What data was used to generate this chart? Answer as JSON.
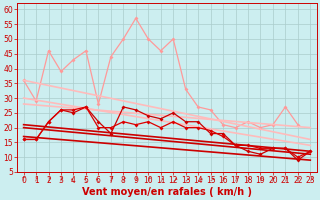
{
  "xlabel": "Vent moyen/en rafales ( km/h )",
  "bg_color": "#cceef0",
  "grid_color": "#aacccc",
  "ylim": [
    5,
    62
  ],
  "yticks": [
    5,
    10,
    15,
    20,
    25,
    30,
    35,
    40,
    45,
    50,
    55,
    60
  ],
  "ytick_labels": [
    "5",
    "10",
    "15",
    "20",
    "25",
    "30",
    "35",
    "40",
    "45",
    "50",
    "55",
    "60"
  ],
  "xlim": [
    -0.5,
    23.5
  ],
  "lines": [
    {
      "comment": "light pink marker line - jagged high values",
      "x": [
        0,
        1,
        2,
        3,
        4,
        5,
        6,
        7,
        8,
        9,
        10,
        11,
        12,
        13,
        14,
        15,
        16,
        17,
        18,
        19,
        20,
        21,
        22
      ],
      "y": [
        36,
        29,
        46,
        39,
        43,
        46,
        28,
        44,
        50,
        57,
        50,
        46,
        50,
        33,
        27,
        26,
        21,
        20,
        22,
        20,
        21,
        27,
        21
      ],
      "color": "#ff9999",
      "lw": 0.9,
      "marker": "D",
      "ms": 2.0,
      "zorder": 2
    },
    {
      "comment": "light pink straight trend line top - declining from ~36 to ~16",
      "x": [
        0,
        23
      ],
      "y": [
        36,
        16
      ],
      "color": "#ffbbbb",
      "lw": 1.2,
      "marker": null,
      "ms": 0,
      "zorder": 2
    },
    {
      "comment": "light pink straight trend line bottom - declining from ~30 to ~14",
      "x": [
        0,
        23
      ],
      "y": [
        30,
        14
      ],
      "color": "#ffbbbb",
      "lw": 1.2,
      "marker": null,
      "ms": 0,
      "zorder": 2
    },
    {
      "comment": "light pink straight trend line middle - declining from ~28 to ~20",
      "x": [
        0,
        23
      ],
      "y": [
        28,
        20
      ],
      "color": "#ffbbbb",
      "lw": 1.2,
      "marker": null,
      "ms": 0,
      "zorder": 2
    },
    {
      "comment": "dark red marker line 1 - with diamonds, jagged around 15-27",
      "x": [
        0,
        1,
        2,
        3,
        4,
        5,
        6,
        7,
        8,
        9,
        10,
        11,
        12,
        13,
        14,
        15,
        16,
        17,
        18,
        19,
        20,
        21,
        22,
        23
      ],
      "y": [
        16,
        16,
        22,
        26,
        25,
        27,
        22,
        18,
        27,
        26,
        24,
        23,
        25,
        22,
        22,
        18,
        18,
        14,
        12,
        11,
        13,
        13,
        9,
        12
      ],
      "color": "#cc0000",
      "lw": 0.9,
      "marker": "D",
      "ms": 2.0,
      "zorder": 3
    },
    {
      "comment": "dark red marker line 2 - slightly lower jagged",
      "x": [
        0,
        1,
        2,
        3,
        4,
        5,
        6,
        7,
        8,
        9,
        10,
        11,
        12,
        13,
        14,
        15,
        16,
        17,
        18,
        19,
        20,
        21,
        22,
        23
      ],
      "y": [
        16,
        16,
        22,
        26,
        26,
        27,
        20,
        20,
        22,
        21,
        22,
        20,
        22,
        20,
        20,
        19,
        17,
        14,
        14,
        13,
        13,
        13,
        10,
        12
      ],
      "color": "#dd0000",
      "lw": 0.9,
      "marker": "D",
      "ms": 2.0,
      "zorder": 3
    },
    {
      "comment": "dark red straight trend line top - declining from ~21 to ~12",
      "x": [
        0,
        23
      ],
      "y": [
        21,
        12
      ],
      "color": "#cc0000",
      "lw": 1.2,
      "marker": null,
      "ms": 0,
      "zorder": 3
    },
    {
      "comment": "dark red straight trend line middle - declining from ~20 to ~11",
      "x": [
        0,
        23
      ],
      "y": [
        20,
        11
      ],
      "color": "#cc0000",
      "lw": 1.2,
      "marker": null,
      "ms": 0,
      "zorder": 3
    },
    {
      "comment": "dark red straight trend line bottom - declining from ~17 to ~9",
      "x": [
        0,
        23
      ],
      "y": [
        17,
        9
      ],
      "color": "#cc0000",
      "lw": 1.2,
      "marker": null,
      "ms": 0,
      "zorder": 3
    }
  ],
  "font_color": "#cc0000",
  "tick_fontsize": 5.5,
  "label_fontsize": 7,
  "arrow_rotations": [
    0,
    15,
    15,
    15,
    330,
    330,
    330,
    15,
    15,
    15,
    15,
    30,
    45,
    45,
    60,
    60,
    15,
    15,
    15,
    15,
    15,
    15,
    15,
    15
  ]
}
